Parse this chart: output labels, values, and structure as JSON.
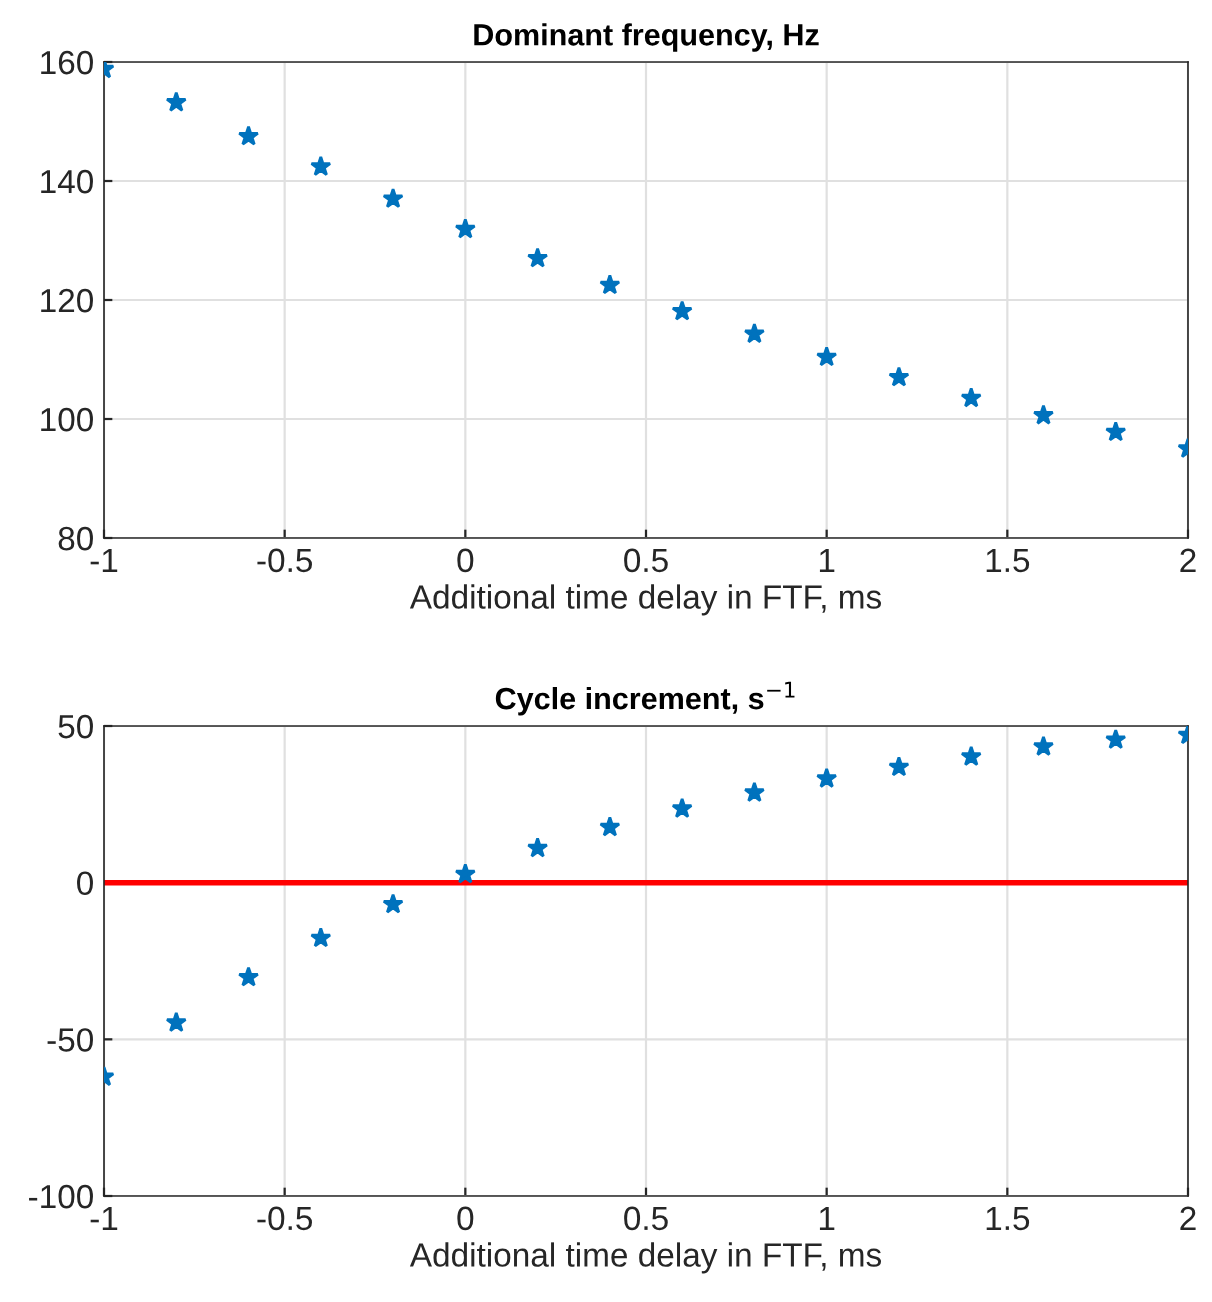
{
  "chart_data": [
    {
      "type": "scatter",
      "title": "Dominant frequency, Hz",
      "xlabel": "Additional time delay in FTF, ms",
      "x": [
        -1,
        -0.8,
        -0.6,
        -0.4,
        -0.2,
        0,
        0.2,
        0.4,
        0.6,
        0.8,
        1,
        1.2,
        1.4,
        1.6,
        1.8,
        2
      ],
      "series": [
        {
          "color": "#0072bd",
          "values": [
            158.8,
            153.2,
            147.5,
            142.4,
            137.0,
            131.9,
            127.0,
            122.5,
            118.1,
            114.3,
            110.4,
            107.0,
            103.5,
            100.6,
            97.8,
            95.0
          ]
        }
      ],
      "xlim": [
        -1,
        2
      ],
      "xticks": [
        -1,
        -0.5,
        0,
        0.5,
        1,
        1.5,
        2
      ],
      "ylim": [
        80,
        160
      ],
      "yticks": [
        80,
        100,
        120,
        140,
        160
      ],
      "grid": true,
      "marker": "star"
    },
    {
      "type": "scatter",
      "title": "Cycle increment, s$^{−1}$",
      "xlabel": "Additional time delay in FTF, ms",
      "x": [
        -1,
        -0.8,
        -0.6,
        -0.4,
        -0.2,
        0,
        0.2,
        0.4,
        0.6,
        0.8,
        1,
        1.2,
        1.4,
        1.6,
        1.8,
        2
      ],
      "series": [
        {
          "color": "#0072bd",
          "values": [
            -62.0,
            -44.7,
            -30.2,
            -17.7,
            -6.9,
            2.7,
            11.0,
            17.7,
            23.6,
            28.7,
            33.2,
            36.9,
            40.2,
            43.4,
            45.6,
            47.1
          ]
        }
      ],
      "xlim": [
        -1,
        2
      ],
      "xticks": [
        -1,
        -0.5,
        0,
        0.5,
        1,
        1.5,
        2
      ],
      "ylim": [
        -100,
        50
      ],
      "yticks": [
        -100,
        -50,
        0,
        50
      ],
      "grid": true,
      "marker": "star",
      "ref_lines": [
        {
          "axis": "y",
          "value": 0,
          "color": "#ff0000"
        }
      ]
    }
  ]
}
